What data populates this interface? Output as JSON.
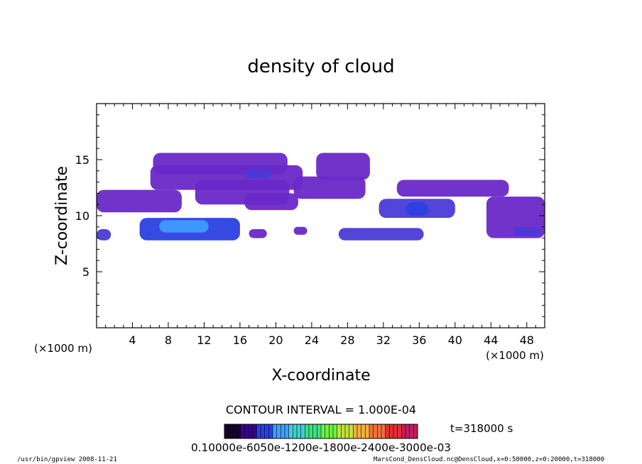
{
  "chart_data": {
    "type": "heatmap",
    "title": "density of cloud",
    "xlabel": "X-coordinate",
    "ylabel": "Z-coordinate",
    "x_unit_left": "(×1000 m)",
    "x_unit_right": "(×1000 m)",
    "xlim": [
      0,
      50
    ],
    "ylim": [
      0,
      20
    ],
    "xticks": [
      "4",
      "8",
      "12",
      "16",
      "20",
      "24",
      "28",
      "32",
      "36",
      "40",
      "44",
      "48"
    ],
    "xtick_values": [
      4,
      8,
      12,
      16,
      20,
      24,
      28,
      32,
      36,
      40,
      44,
      48
    ],
    "yticks": [
      "5",
      "10",
      "15"
    ],
    "ytick_values": [
      5,
      10,
      15
    ],
    "contour_interval": "CONTOUR INTERVAL = 1.000E-04",
    "time_label": "t=318000 s",
    "colorbar_labels": "0.10000e-6050e-1200e-1800e-2400e-3000e-03",
    "colorbar_colors": [
      "#1a0030",
      "#3a0090",
      "#2a40e0",
      "#3fa0ff",
      "#40d0d0",
      "#40e080",
      "#70f040",
      "#c0e040",
      "#f0b040",
      "#f07040",
      "#e03030",
      "#c02060"
    ],
    "footer_left": "/usr/bin/gpview   2008-11-21",
    "footer_right": "MarsCond_DensCloud.nc@DensCloud,x=0:50000,z=0:20000,t=318000",
    "regions": [
      {
        "x": [
          6.3,
          21.3
        ],
        "z": [
          13.7,
          15.6
        ],
        "level": 2
      },
      {
        "x": [
          6.0,
          23.0
        ],
        "z": [
          12.3,
          14.5
        ],
        "level": 2
      },
      {
        "x": [
          11.0,
          21.5
        ],
        "z": [
          11.0,
          13.2
        ],
        "level": 2
      },
      {
        "x": [
          16.5,
          22.5
        ],
        "z": [
          10.5,
          12.0
        ],
        "level": 2
      },
      {
        "x": [
          24.5,
          30.5
        ],
        "z": [
          13.2,
          15.6
        ],
        "level": 2
      },
      {
        "x": [
          22.0,
          30.0
        ],
        "z": [
          11.5,
          13.5
        ],
        "level": 2
      },
      {
        "x": [
          0.0,
          9.5
        ],
        "z": [
          10.3,
          12.3
        ],
        "level": 2
      },
      {
        "x": [
          33.5,
          46.0
        ],
        "z": [
          11.7,
          13.2
        ],
        "level": 2
      },
      {
        "x": [
          31.5,
          40.0
        ],
        "z": [
          9.8,
          11.5
        ],
        "level": 3
      },
      {
        "x": [
          43.5,
          50.0
        ],
        "z": [
          8.0,
          11.7
        ],
        "level": 2
      },
      {
        "x": [
          4.8,
          16.0
        ],
        "z": [
          7.8,
          9.8
        ],
        "level": 4
      },
      {
        "x": [
          27.0,
          36.5
        ],
        "z": [
          7.8,
          8.9
        ],
        "level": 3
      },
      {
        "x": [
          0.0,
          1.6
        ],
        "z": [
          7.8,
          8.8
        ],
        "level": 3
      },
      {
        "x": [
          17.0,
          19.0
        ],
        "z": [
          8.0,
          8.8
        ],
        "level": 2
      },
      {
        "x": [
          22.0,
          23.5
        ],
        "z": [
          8.3,
          9.0
        ],
        "level": 2
      }
    ],
    "cores": [
      {
        "x": [
          7.0,
          12.5
        ],
        "z": [
          8.5,
          9.6
        ],
        "level": 5
      },
      {
        "x": [
          34.5,
          37.0
        ],
        "z": [
          10.0,
          11.2
        ],
        "level": 4
      },
      {
        "x": [
          16.5,
          19.5
        ],
        "z": [
          13.3,
          14.2
        ],
        "level": 3
      },
      {
        "x": [
          46.5,
          49.5
        ],
        "z": [
          8.2,
          9.0
        ],
        "level": 3
      }
    ]
  }
}
